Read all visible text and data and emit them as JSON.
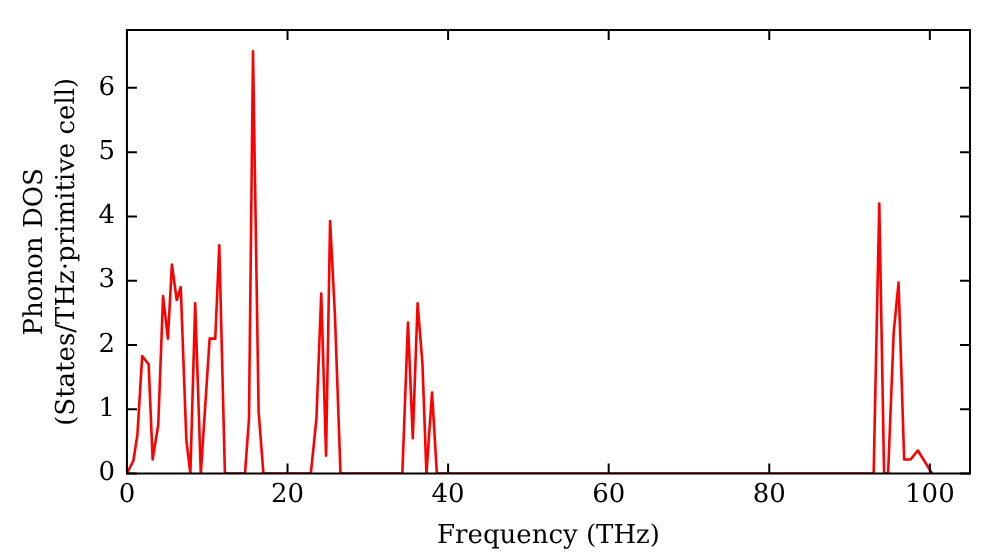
{
  "chart_data": {
    "type": "line",
    "xlabel": "Frequency (THz)",
    "ylabel": "Phonon DOS\n(States/THz·primitive cell)",
    "xlim": [
      0,
      105
    ],
    "xticks": [
      0,
      20,
      40,
      60,
      80,
      100
    ],
    "ylim": [
      0,
      6.9
    ],
    "yticks": [
      0,
      1,
      2,
      3,
      4,
      5,
      6
    ],
    "grid": false,
    "legend": false,
    "marker": "none",
    "line_style": "solid",
    "series": [
      {
        "color": "#ff0000",
        "x": [
          0,
          0.8,
          1.3,
          1.9,
          2.7,
          3.2,
          3.9,
          4.5,
          5.1,
          5.6,
          6.2,
          6.7,
          7.4,
          7.9,
          8.5,
          9.2,
          10.3,
          11,
          11.5,
          12.2,
          14.7,
          15.2,
          15.7,
          16.4,
          17,
          22.9,
          23.6,
          24.2,
          24.8,
          25.3,
          25.9,
          26.6,
          34.3,
          35,
          35.6,
          36.2,
          36.8,
          37.3,
          38,
          38.6,
          93,
          93.7,
          94.3,
          94.8,
          95.5,
          96.1,
          96.8,
          97.6,
          98.5,
          99.3,
          100.3
        ],
        "values": [
          0,
          0.2,
          0.6,
          1.83,
          1.7,
          0.22,
          0.76,
          2.76,
          2.1,
          3.25,
          2.7,
          2.9,
          0.52,
          0,
          2.65,
          0,
          2.1,
          2.1,
          3.55,
          0,
          0,
          0.85,
          6.57,
          0.96,
          0,
          0,
          0.85,
          2.8,
          0.28,
          3.93,
          2.48,
          0,
          0,
          2.35,
          0.55,
          2.65,
          1.72,
          0,
          1.26,
          0,
          0,
          4.2,
          0,
          0,
          2.2,
          2.97,
          0.22,
          0.22,
          0.36,
          0.2,
          0
        ]
      }
    ]
  }
}
